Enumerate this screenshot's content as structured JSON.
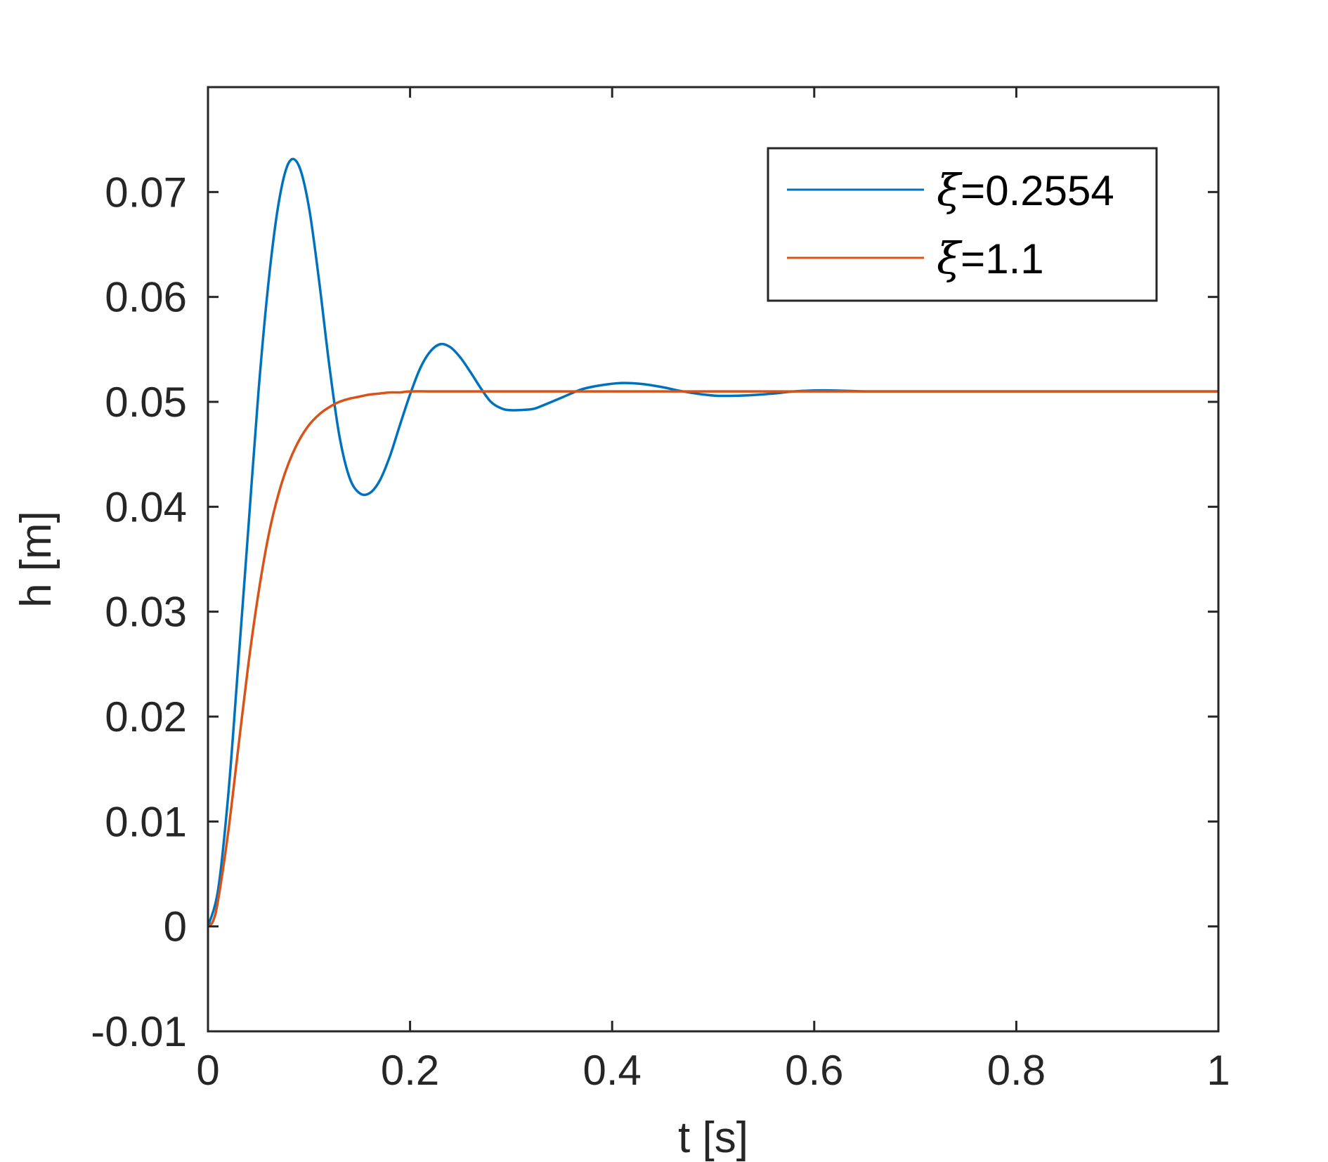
{
  "chart_data": {
    "type": "line",
    "title": "",
    "xlabel": "t [s]",
    "ylabel": "h [m]",
    "xlim": [
      0,
      1
    ],
    "ylim": [
      -0.01,
      0.08
    ],
    "x_ticks": [
      0,
      0.2,
      0.4,
      0.6,
      0.8,
      1
    ],
    "x_tick_labels": [
      "0",
      "0.2",
      "0.4",
      "0.6",
      "0.8",
      "1"
    ],
    "y_ticks": [
      -0.01,
      0,
      0.01,
      0.02,
      0.03,
      0.04,
      0.05,
      0.06,
      0.07
    ],
    "y_tick_labels": [
      "-0.01",
      "0",
      "0.01",
      "0.02",
      "0.03",
      "0.04",
      "0.05",
      "0.06",
      "0.07"
    ],
    "grid": false,
    "legend_position": "top-right",
    "series": [
      {
        "name": "ξ=0.2554",
        "legend_symbol": "ξ",
        "legend_value": "=0.2554",
        "color": "#0072BD",
        "x": [
          0,
          0.01,
          0.02,
          0.03,
          0.04,
          0.05,
          0.06,
          0.07,
          0.08,
          0.09,
          0.1,
          0.11,
          0.12,
          0.13,
          0.14,
          0.15,
          0.16,
          0.17,
          0.18,
          0.19,
          0.2,
          0.21,
          0.22,
          0.23,
          0.24,
          0.25,
          0.26,
          0.27,
          0.28,
          0.29,
          0.3,
          0.32,
          0.33,
          0.35,
          0.37,
          0.39,
          0.41,
          0.43,
          0.45,
          0.47,
          0.5,
          0.53,
          0.56,
          0.58,
          0.61,
          0.65,
          0.7,
          0.75,
          0.8,
          0.9,
          1.0
        ],
        "y": [
          0,
          0.0035,
          0.0125,
          0.025,
          0.038,
          0.051,
          0.0615,
          0.069,
          0.0728,
          0.0725,
          0.0685,
          0.0615,
          0.0535,
          0.0468,
          0.0428,
          0.0413,
          0.0413,
          0.0425,
          0.0448,
          0.0478,
          0.0507,
          0.0532,
          0.0548,
          0.0555,
          0.0552,
          0.0542,
          0.0528,
          0.0513,
          0.05,
          0.0494,
          0.0492,
          0.0493,
          0.0496,
          0.0504,
          0.0512,
          0.0516,
          0.0518,
          0.0517,
          0.0514,
          0.051,
          0.0506,
          0.0506,
          0.0508,
          0.051,
          0.0511,
          0.051,
          0.051,
          0.051,
          0.051,
          0.051,
          0.051
        ]
      },
      {
        "name": "ξ=1.1",
        "legend_symbol": "ξ",
        "legend_value": "=1.1",
        "color": "#D95319",
        "x": [
          0,
          0.005,
          0.01,
          0.02,
          0.03,
          0.04,
          0.05,
          0.06,
          0.07,
          0.08,
          0.09,
          0.1,
          0.11,
          0.12,
          0.13,
          0.14,
          0.15,
          0.16,
          0.17,
          0.18,
          0.19,
          0.2,
          0.22,
          0.25,
          0.3,
          0.4,
          0.5,
          0.6,
          0.7,
          0.8,
          0.9,
          1.0
        ],
        "y": [
          0,
          0.0005,
          0.0025,
          0.009,
          0.017,
          0.025,
          0.0318,
          0.0373,
          0.0413,
          0.0442,
          0.0463,
          0.0478,
          0.0488,
          0.0495,
          0.05,
          0.0503,
          0.0505,
          0.0507,
          0.0508,
          0.0509,
          0.0509,
          0.051,
          0.051,
          0.051,
          0.051,
          0.051,
          0.051,
          0.051,
          0.051,
          0.051,
          0.051,
          0.051
        ]
      }
    ]
  }
}
